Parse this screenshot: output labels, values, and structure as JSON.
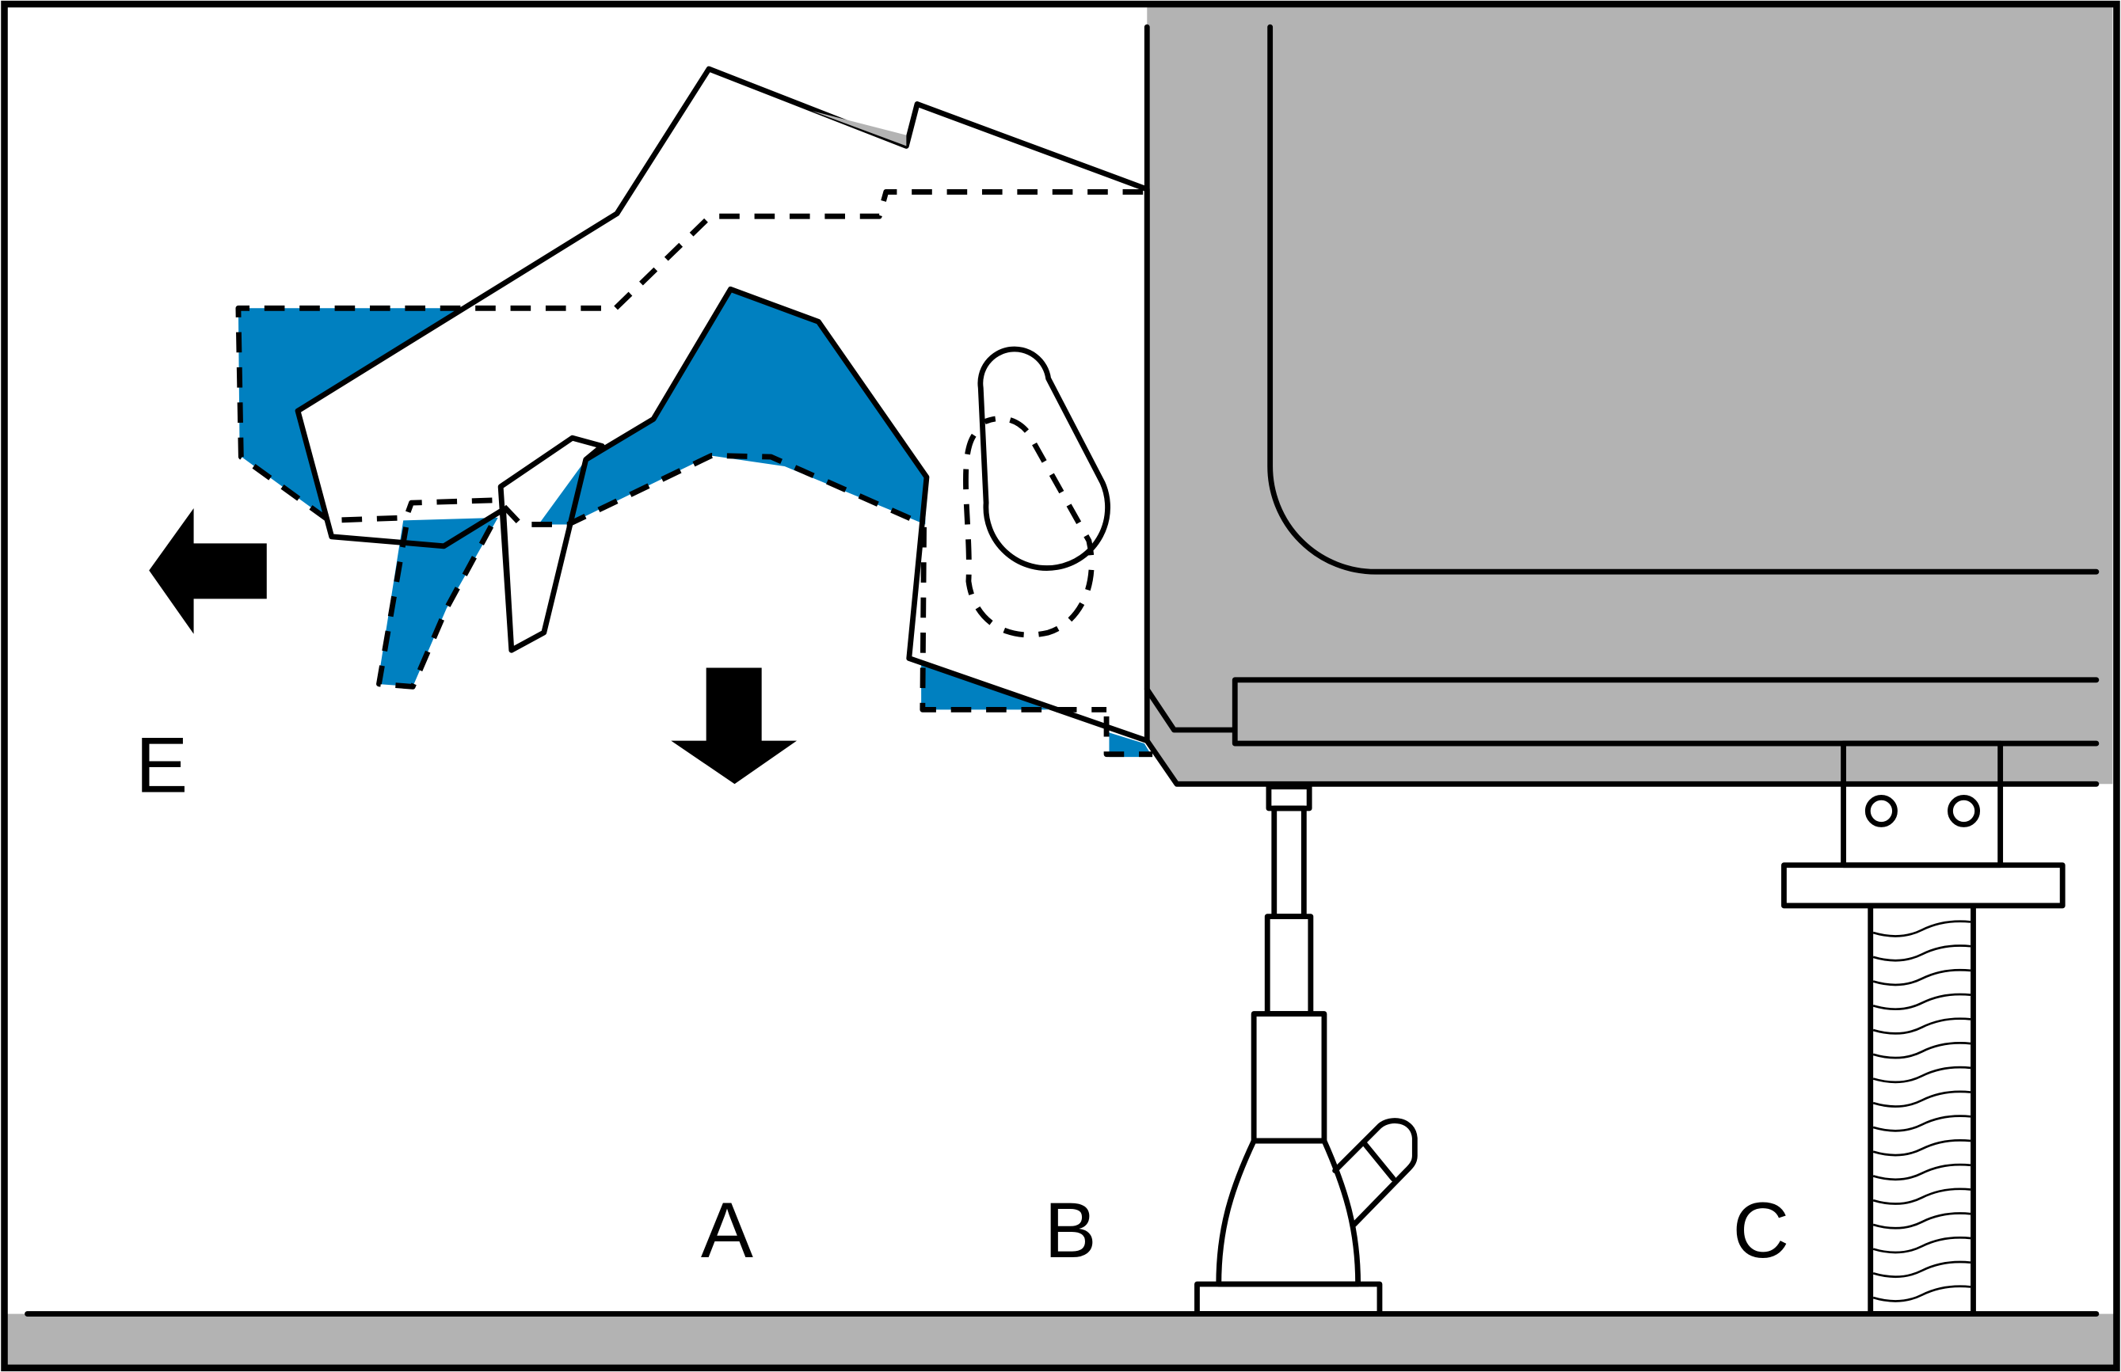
{
  "labels": {
    "a": "A",
    "b": "B",
    "c": "C",
    "e": "E"
  },
  "colors": {
    "machine_gray": "#b3b3b3",
    "highlight_blue": "#0080c0",
    "outline": "#000000",
    "background": "#ffffff"
  },
  "icons": {
    "arrow_left": "arrow-left-icon",
    "arrow_down": "arrow-down-icon"
  }
}
